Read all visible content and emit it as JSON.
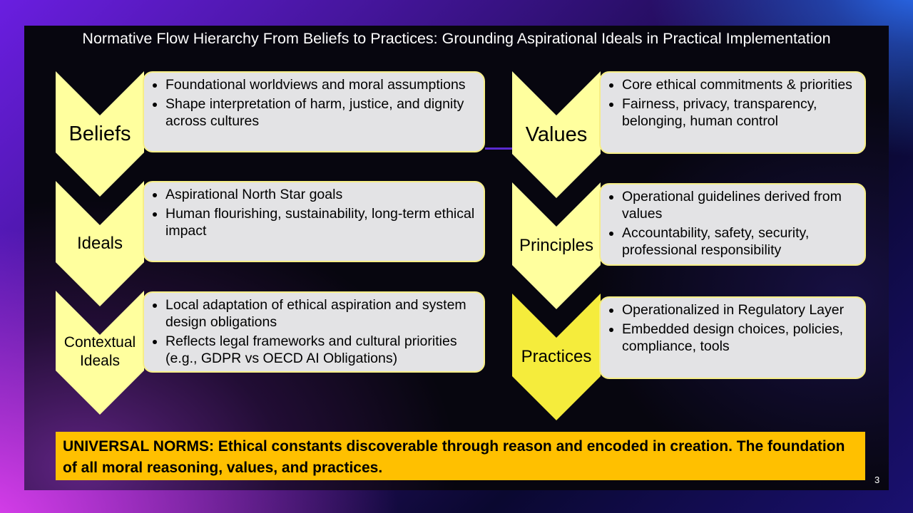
{
  "title": "Normative Flow Hierarchy From Beliefs to Practices: Grounding Aspirational Ideals in Practical Implementation",
  "colors": {
    "chevron_fill": "#ffff9e",
    "chevron_fill_strong": "#f5ec3c",
    "box_fill": "#e3e3e5",
    "box_border": "#f6ee86",
    "norms_fill": "#ffc000",
    "connector": "#5a2ad0"
  },
  "left_column": [
    {
      "label": "Beliefs",
      "bullets": [
        "Foundational worldviews and moral assumptions",
        "Shape interpretation of harm, justice, and dignity across cultures"
      ]
    },
    {
      "label": "Ideals",
      "bullets": [
        "Aspirational North Star goals",
        "Human flourishing, sustainability, long-term ethical impact"
      ]
    },
    {
      "label": "Contextual Ideals",
      "bullets": [
        "Local adaptation of ethical aspiration and system design obligations",
        "Reflects legal frameworks and cultural priorities (e.g., GDPR vs OECD AI Obligations)"
      ]
    }
  ],
  "right_column": [
    {
      "label": "Values",
      "bullets": [
        "Core ethical commitments & priorities",
        "Fairness, privacy, transparency, belonging, human control"
      ]
    },
    {
      "label": "Principles",
      "bullets": [
        "Operational guidelines derived from values",
        "Accountability, safety, security, professional responsibility"
      ]
    },
    {
      "label": "Practices",
      "bullets": [
        "Operationalized in Regulatory Layer",
        "Embedded design choices, policies, compliance, tools"
      ]
    }
  ],
  "universal_norms": "UNIVERSAL NORMS: Ethical constants discoverable through reason and encoded in creation. The foundation of all moral reasoning, values, and practices.",
  "page_number": "3"
}
